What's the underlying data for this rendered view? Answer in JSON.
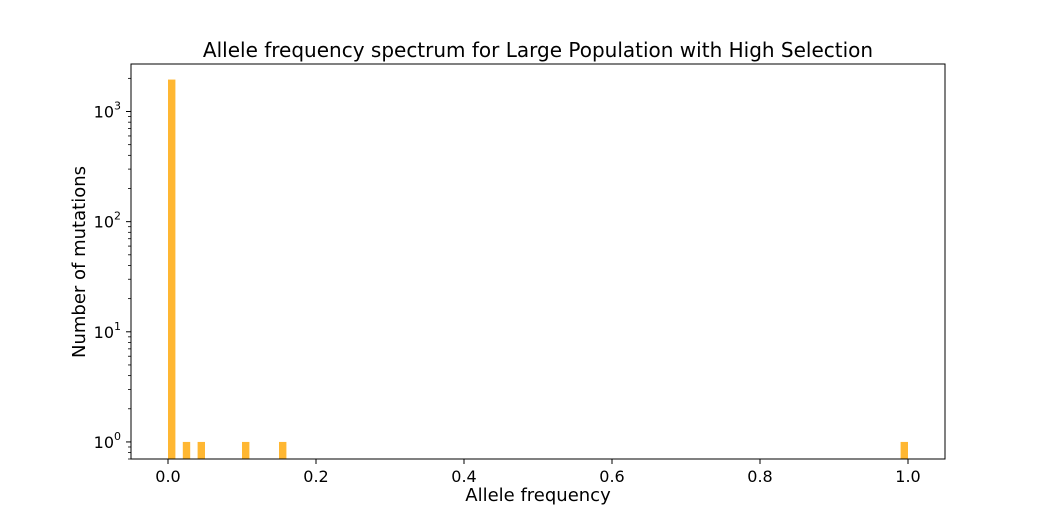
{
  "chart_data": {
    "type": "bar",
    "title": "Allele frequency spectrum for Large Population with High Selection",
    "xlabel": "Allele frequency",
    "ylabel": "Number of mutations",
    "yscale": "log",
    "xlim": [
      -0.05,
      1.05
    ],
    "ylim": [
      0.7,
      2700
    ],
    "bar_color": "#ffb732",
    "bin_width": 0.01,
    "x_ticks": [
      {
        "value": 0.0,
        "label": "0.0"
      },
      {
        "value": 0.2,
        "label": "0.2"
      },
      {
        "value": 0.4,
        "label": "0.4"
      },
      {
        "value": 0.6,
        "label": "0.6"
      },
      {
        "value": 0.8,
        "label": "0.8"
      },
      {
        "value": 1.0,
        "label": "1.0"
      }
    ],
    "y_ticks": [
      {
        "value": 1,
        "base": "10",
        "exp": "0"
      },
      {
        "value": 10,
        "base": "10",
        "exp": "1"
      },
      {
        "value": 100,
        "base": "10",
        "exp": "2"
      },
      {
        "value": 1000,
        "base": "10",
        "exp": "3"
      }
    ],
    "bars": [
      {
        "x": 0.005,
        "value": 1950
      },
      {
        "x": 0.025,
        "value": 1
      },
      {
        "x": 0.045,
        "value": 1
      },
      {
        "x": 0.105,
        "value": 1
      },
      {
        "x": 0.155,
        "value": 1
      },
      {
        "x": 0.995,
        "value": 1
      }
    ],
    "grid": false,
    "legend": "none"
  }
}
